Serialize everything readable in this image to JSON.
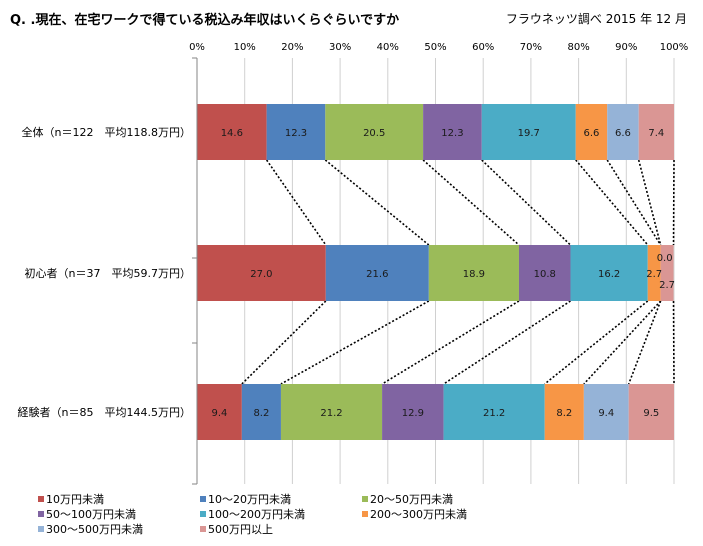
{
  "title": "Q. .現在、在宅ワークで得ている税込み年収はいくらぐらいですか",
  "source": "フラウネッツ調べ 2015 年 12 月",
  "chart_data": {
    "type": "bar",
    "orientation": "horizontal-stacked-100",
    "xlim": [
      0,
      100
    ],
    "x_ticks": [
      "0%",
      "10%",
      "20%",
      "30%",
      "40%",
      "50%",
      "60%",
      "70%",
      "80%",
      "90%",
      "100%"
    ],
    "grid": true,
    "legend_position": "bottom",
    "categories": [
      "全体（n＝122　平均118.8万円）",
      "初心者（n＝37　平均59.7万円）",
      "経験者（n＝85　平均144.5万円）"
    ],
    "series": [
      {
        "name": "10万円未満",
        "color": "#c0504d",
        "values": [
          14.6,
          27.0,
          9.4
        ],
        "labels": [
          "14.6",
          "27.0",
          "9.4"
        ]
      },
      {
        "name": "10～20万円未満",
        "color": "#4f81bd",
        "values": [
          12.3,
          21.6,
          8.2
        ],
        "labels": [
          "12.3",
          "21.6",
          "8.2"
        ]
      },
      {
        "name": "20～50万円未満",
        "color": "#9bbb59",
        "values": [
          20.5,
          18.9,
          21.2
        ],
        "labels": [
          "20.5",
          "18.9",
          "21.2"
        ]
      },
      {
        "name": "50～100万円未満",
        "color": "#8064a2",
        "values": [
          12.3,
          10.8,
          12.9
        ],
        "labels": [
          "12.3",
          "10.8",
          "12.9"
        ]
      },
      {
        "name": "100～200万円未満",
        "color": "#4bacc6",
        "values": [
          19.7,
          16.2,
          21.2
        ],
        "labels": [
          "19.7",
          "16.2",
          "21.2"
        ]
      },
      {
        "name": "200～300万円未満",
        "color": "#f79646",
        "values": [
          6.6,
          2.7,
          8.2
        ],
        "labels": [
          "6.6",
          "2.7",
          "8.2"
        ]
      },
      {
        "name": "300～500万円未満",
        "color": "#95b3d7",
        "values": [
          6.6,
          0.0,
          9.4
        ],
        "labels": [
          "6.6",
          "0.0",
          "9.4"
        ]
      },
      {
        "name": "500万円以上",
        "color": "#da9694",
        "values": [
          7.4,
          2.7,
          9.5
        ],
        "labels": [
          "7.4",
          "2.7",
          "9.5"
        ]
      }
    ]
  }
}
